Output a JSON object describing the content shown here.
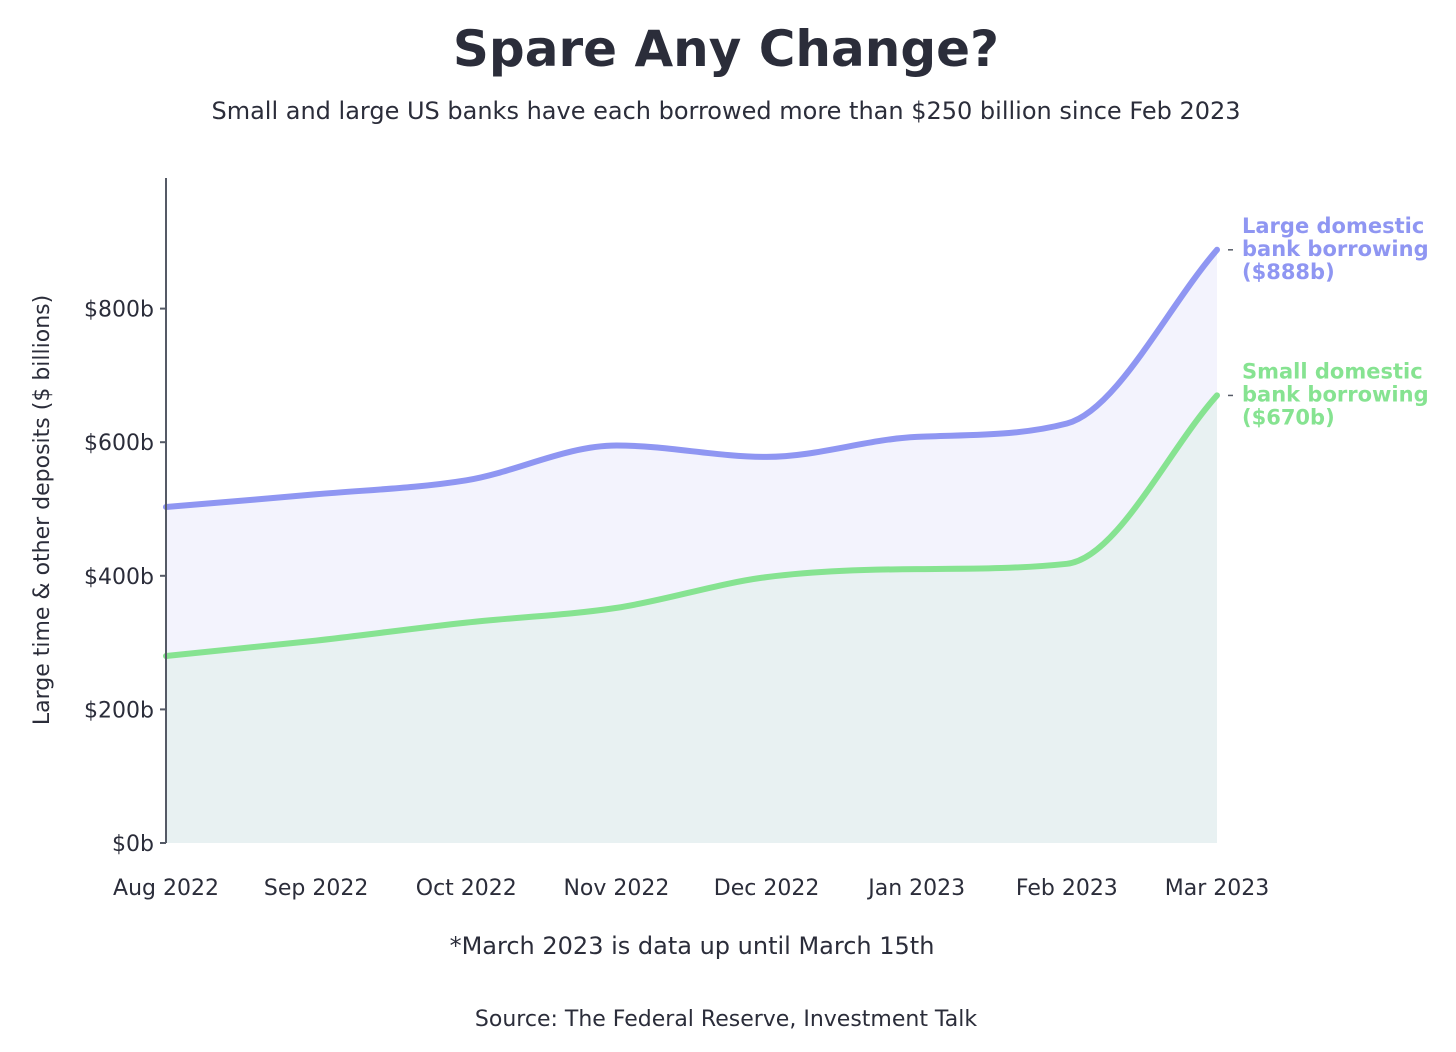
{
  "chart_data": {
    "type": "area",
    "title": "Spare Any Change?",
    "subtitle": "Small and large US banks have each borrowed more than $250 billion since Feb 2023",
    "xlabel": "",
    "ylabel": "Large time & other deposits ($ billions)",
    "categories": [
      "Aug 2022",
      "Sep 2022",
      "Oct 2022",
      "Nov 2022",
      "Dec 2022",
      "Jan 2023",
      "Feb 2023",
      "Mar 2023"
    ],
    "ylim": [
      0,
      1000
    ],
    "yticks": [
      0,
      200,
      400,
      600,
      800
    ],
    "ytick_labels": [
      "$0b",
      "$200b",
      "$400b",
      "$600b",
      "$800b"
    ],
    "grid": false,
    "series": [
      {
        "name": "Large domestic bank borrowing",
        "label_lines": [
          "Large domestic",
          "bank borrowing",
          "($888b)"
        ],
        "color": "#8f96f2",
        "fill": "#f3f3fd",
        "values": [
          503,
          522,
          543,
          595,
          578,
          608,
          628,
          888
        ]
      },
      {
        "name": "Small domestic bank borrowing",
        "label_lines": [
          "Small domestic",
          "bank borrowing",
          "($670b)"
        ],
        "color": "#86e391",
        "fill": "#e8f1f2",
        "values": [
          280,
          303,
          330,
          352,
          398,
          410,
          418,
          670
        ]
      }
    ],
    "note": "*March 2023 is data up until March 15th",
    "source": "Source: The Federal Reserve, Investment Talk"
  }
}
